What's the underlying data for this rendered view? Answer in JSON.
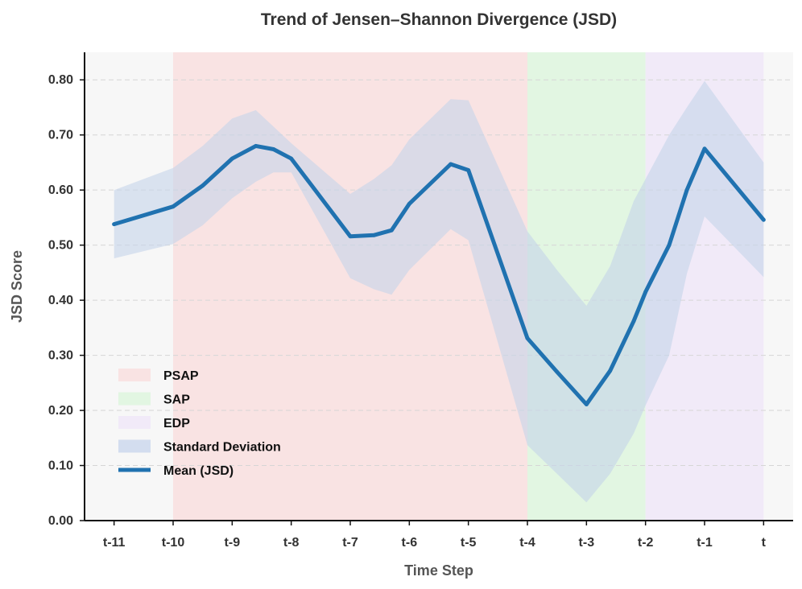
{
  "chart_data": {
    "type": "line",
    "title": "Trend of Jensen–Shannon Divergence (JSD)",
    "xlabel": "Time Step",
    "ylabel": "JSD Score",
    "ylim": [
      0,
      0.85
    ],
    "yticks": [
      "0.00",
      "0.10",
      "0.20",
      "0.30",
      "0.40",
      "0.50",
      "0.60",
      "0.70",
      "0.80"
    ],
    "ytick_values": [
      0,
      0.1,
      0.2,
      0.3,
      0.4,
      0.5,
      0.6,
      0.7,
      0.8
    ],
    "x_ticks": [
      "t-11",
      "t-10",
      "t-9",
      "t-8",
      "t-7",
      "t-6",
      "t-5",
      "t-4",
      "t-3",
      "t-2",
      "t-1",
      "t"
    ],
    "x_tick_positions": [
      -11,
      -10,
      -9,
      -8,
      -7,
      -6,
      -5,
      -4,
      -3,
      -2,
      -1,
      0
    ],
    "xlim": [
      -11.5,
      0.5
    ],
    "grid": true,
    "legend_position": "lower-left",
    "shaded_regions": [
      {
        "name": "PSAP",
        "start": -10,
        "end": -4,
        "color": "#f9e3e3"
      },
      {
        "name": "SAP",
        "start": -4,
        "end": -2,
        "color": "#e2f6e2"
      },
      {
        "name": "EDP",
        "start": -2,
        "end": 0,
        "color": "#f1eaf8"
      }
    ],
    "series": [
      {
        "name": "Mean (JSD)",
        "color": "#2072b0",
        "x": [
          -11,
          -10,
          -9.5,
          -9,
          -8.6,
          -8.3,
          -8,
          -7,
          -6.6,
          -6.3,
          -6,
          -5.3,
          -5,
          -4,
          -3.5,
          -3,
          -2.6,
          -2.2,
          -2,
          -1.6,
          -1.3,
          -1,
          0
        ],
        "values": [
          0.538,
          0.57,
          0.608,
          0.657,
          0.68,
          0.674,
          0.657,
          0.516,
          0.518,
          0.527,
          0.575,
          0.647,
          0.636,
          0.331,
          0.27,
          0.211,
          0.272,
          0.362,
          0.415,
          0.5,
          0.6,
          0.675,
          0.546
        ],
        "std_upper": [
          0.6,
          0.64,
          0.68,
          0.73,
          0.745,
          0.715,
          0.685,
          0.593,
          0.62,
          0.645,
          0.692,
          0.765,
          0.763,
          0.525,
          0.455,
          0.39,
          0.462,
          0.58,
          0.62,
          0.7,
          0.75,
          0.798,
          0.65
        ],
        "std_lower": [
          0.476,
          0.502,
          0.536,
          0.585,
          0.615,
          0.632,
          0.632,
          0.44,
          0.42,
          0.41,
          0.455,
          0.529,
          0.509,
          0.137,
          0.085,
          0.033,
          0.085,
          0.158,
          0.209,
          0.3,
          0.448,
          0.552,
          0.442
        ]
      }
    ],
    "legend": [
      {
        "label": "PSAP",
        "kind": "patch",
        "color": "#f9e3e3"
      },
      {
        "label": "SAP",
        "kind": "patch",
        "color": "#e2f6e2"
      },
      {
        "label": "EDP",
        "kind": "patch",
        "color": "#f1eaf8"
      },
      {
        "label": "Standard Deviation",
        "kind": "patch",
        "color": "#d3ddef"
      },
      {
        "label": "Mean (JSD)",
        "kind": "line",
        "color": "#2072b0"
      }
    ],
    "colors": {
      "plot_background": "#f7f7f7",
      "std_band": "#c4d4ea",
      "axis": "#111111",
      "grid": "#d6d6d6"
    }
  }
}
